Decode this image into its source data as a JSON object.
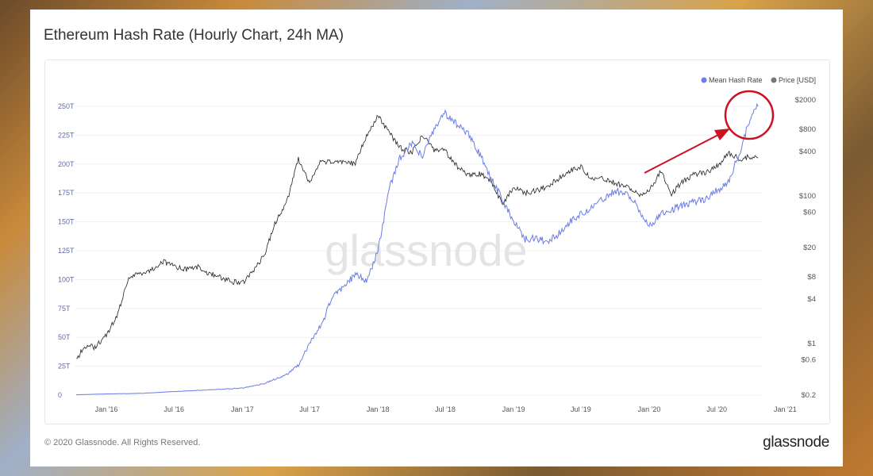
{
  "title": "Ethereum Hash Rate (Hourly Chart, 24h MA)",
  "footer": "© 2020 Glassnode. All Rights Reserved.",
  "logo": "glassnode",
  "watermark": "glassnode",
  "colors": {
    "hash_rate": "#6c7be8",
    "price": "#222222",
    "annotation": "#cc1122"
  },
  "chart_data": {
    "type": "line",
    "title": "Ethereum Hash Rate (Hourly Chart, 24h MA)",
    "legend": {
      "position": "top-right",
      "items": [
        "Mean Hash Rate",
        "Price [USD]"
      ]
    },
    "grid": true,
    "x_ticks": [
      "Jan '16",
      "Jul '16",
      "Jan '17",
      "Jul '17",
      "Jan '18",
      "Jul '18",
      "Jan '19",
      "Jul '19",
      "Jan '20",
      "Jul '20",
      "Jan '21"
    ],
    "x_tick_dates": [
      "2016-01-01",
      "2016-07-01",
      "2017-01-01",
      "2017-07-01",
      "2018-01-01",
      "2018-07-01",
      "2019-01-01",
      "2019-07-01",
      "2020-01-01",
      "2020-07-01",
      "2021-01-01"
    ],
    "y_left": {
      "ticks": [
        "0",
        "25T",
        "50T",
        "75T",
        "100T",
        "125T",
        "150T",
        "175T",
        "200T",
        "225T",
        "250T"
      ],
      "values": [
        0,
        25,
        50,
        75,
        100,
        125,
        150,
        175,
        200,
        225,
        250
      ],
      "range": [
        0,
        250
      ],
      "unit": "T"
    },
    "y_right": {
      "scale": "log",
      "ticks": [
        "$2000",
        "$800",
        "$400",
        "$100",
        "$60",
        "$20",
        "$8",
        "$4",
        "$1",
        "$0.6",
        "$0.2"
      ],
      "values": [
        2000,
        800,
        400,
        100,
        60,
        20,
        8,
        4,
        1,
        0.6,
        0.2
      ]
    },
    "series": [
      {
        "name": "Mean Hash Rate",
        "axis": "left",
        "points": [
          [
            "2015-10-12",
            0.3
          ],
          [
            "2016-01-01",
            1
          ],
          [
            "2016-04-01",
            1.5
          ],
          [
            "2016-07-01",
            3
          ],
          [
            "2016-10-01",
            4.5
          ],
          [
            "2017-01-01",
            6
          ],
          [
            "2017-03-01",
            10
          ],
          [
            "2017-05-01",
            18
          ],
          [
            "2017-06-01",
            26
          ],
          [
            "2017-07-01",
            45
          ],
          [
            "2017-08-01",
            60
          ],
          [
            "2017-09-01",
            85
          ],
          [
            "2017-10-01",
            95
          ],
          [
            "2017-11-01",
            104
          ],
          [
            "2017-12-01",
            100
          ],
          [
            "2018-01-01",
            124
          ],
          [
            "2018-02-01",
            180
          ],
          [
            "2018-03-01",
            205
          ],
          [
            "2018-04-01",
            218
          ],
          [
            "2018-05-01",
            207
          ],
          [
            "2018-06-01",
            230
          ],
          [
            "2018-07-01",
            244
          ],
          [
            "2018-08-01",
            234
          ],
          [
            "2018-09-01",
            227
          ],
          [
            "2018-10-01",
            209
          ],
          [
            "2018-11-01",
            189
          ],
          [
            "2018-12-01",
            170
          ],
          [
            "2019-01-01",
            150
          ],
          [
            "2019-02-01",
            135
          ],
          [
            "2019-03-01",
            136
          ],
          [
            "2019-04-01",
            133
          ],
          [
            "2019-05-01",
            139
          ],
          [
            "2019-06-01",
            150
          ],
          [
            "2019-07-01",
            157
          ],
          [
            "2019-08-01",
            163
          ],
          [
            "2019-09-01",
            170
          ],
          [
            "2019-10-01",
            177
          ],
          [
            "2019-11-01",
            174
          ],
          [
            "2019-12-01",
            163
          ],
          [
            "2020-01-01",
            146
          ],
          [
            "2020-02-01",
            157
          ],
          [
            "2020-03-01",
            160
          ],
          [
            "2020-04-01",
            165
          ],
          [
            "2020-05-01",
            167
          ],
          [
            "2020-06-01",
            170
          ],
          [
            "2020-07-01",
            177
          ],
          [
            "2020-08-01",
            184
          ],
          [
            "2020-09-01",
            211
          ],
          [
            "2020-10-01",
            242
          ],
          [
            "2020-10-20",
            250
          ]
        ]
      },
      {
        "name": "Price [USD]",
        "axis": "right",
        "points": [
          [
            "2015-10-12",
            0.6
          ],
          [
            "2015-11-01",
            0.9
          ],
          [
            "2015-12-01",
            0.9
          ],
          [
            "2016-01-01",
            1.3
          ],
          [
            "2016-02-01",
            2.5
          ],
          [
            "2016-03-01",
            8
          ],
          [
            "2016-04-01",
            9
          ],
          [
            "2016-05-01",
            10
          ],
          [
            "2016-06-01",
            13
          ],
          [
            "2016-07-01",
            11
          ],
          [
            "2016-08-01",
            10
          ],
          [
            "2016-09-01",
            11
          ],
          [
            "2016-10-01",
            9
          ],
          [
            "2016-11-01",
            8
          ],
          [
            "2016-12-01",
            7
          ],
          [
            "2017-01-01",
            6.5
          ],
          [
            "2017-02-01",
            10
          ],
          [
            "2017-03-01",
            16
          ],
          [
            "2017-04-01",
            45
          ],
          [
            "2017-05-01",
            86
          ],
          [
            "2017-06-01",
            320
          ],
          [
            "2017-07-01",
            150
          ],
          [
            "2017-08-01",
            300
          ],
          [
            "2017-09-01",
            280
          ],
          [
            "2017-10-01",
            300
          ],
          [
            "2017-11-01",
            270
          ],
          [
            "2017-12-01",
            670
          ],
          [
            "2018-01-01",
            1200
          ],
          [
            "2018-02-01",
            720
          ],
          [
            "2018-03-01",
            450
          ],
          [
            "2018-04-01",
            380
          ],
          [
            "2018-05-01",
            670
          ],
          [
            "2018-06-01",
            420
          ],
          [
            "2018-07-01",
            410
          ],
          [
            "2018-08-01",
            250
          ],
          [
            "2018-09-01",
            195
          ],
          [
            "2018-10-01",
            200
          ],
          [
            "2018-11-01",
            165
          ],
          [
            "2018-12-01",
            78
          ],
          [
            "2019-01-01",
            128
          ],
          [
            "2019-02-01",
            110
          ],
          [
            "2019-03-01",
            118
          ],
          [
            "2019-04-01",
            134
          ],
          [
            "2019-05-01",
            170
          ],
          [
            "2019-06-01",
            220
          ],
          [
            "2019-07-01",
            250
          ],
          [
            "2019-08-01",
            170
          ],
          [
            "2019-09-01",
            170
          ],
          [
            "2019-10-01",
            150
          ],
          [
            "2019-11-01",
            134
          ],
          [
            "2019-12-01",
            105
          ],
          [
            "2020-01-01",
            118
          ],
          [
            "2020-02-01",
            220
          ],
          [
            "2020-03-01",
            105
          ],
          [
            "2020-04-01",
            160
          ],
          [
            "2020-05-01",
            195
          ],
          [
            "2020-06-01",
            210
          ],
          [
            "2020-07-01",
            250
          ],
          [
            "2020-08-01",
            380
          ],
          [
            "2020-09-01",
            320
          ],
          [
            "2020-10-01",
            340
          ],
          [
            "2020-10-20",
            330
          ]
        ]
      }
    ]
  }
}
